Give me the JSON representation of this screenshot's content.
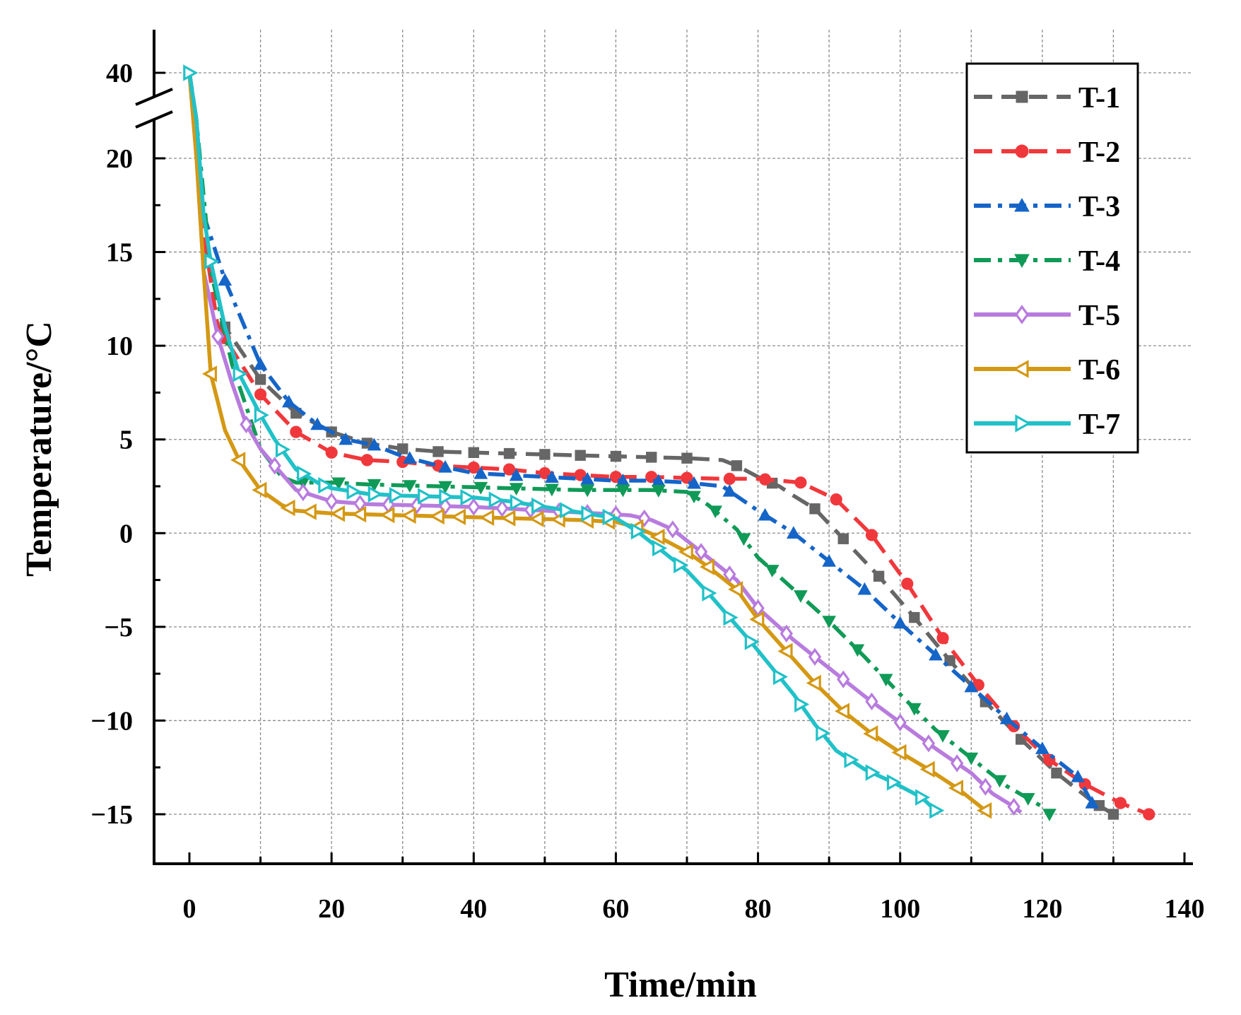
{
  "chart_data": {
    "type": "line",
    "title": "",
    "xlabel": "Time/min",
    "ylabel": "Temperature/°C",
    "xlim": [
      -5,
      140
    ],
    "ylim": [
      -18,
      42
    ],
    "axis_break": {
      "lower": 22,
      "upper": 38,
      "note": "y-axis broken between 22 and 38"
    },
    "x_ticks": [
      0,
      20,
      40,
      60,
      80,
      100,
      120,
      140
    ],
    "y_ticks": [
      -15,
      -10,
      -5,
      0,
      5,
      10,
      15,
      20,
      40
    ],
    "y_tick_labels": [
      "−15",
      "−10",
      "−5",
      "0",
      "5",
      "10",
      "15",
      "20",
      "40"
    ],
    "grid": true,
    "legend_position": "top-right",
    "series": [
      {
        "name": "T-1",
        "color": "#666666",
        "dash": "dash",
        "marker": "square",
        "marker_fill": true,
        "points": [
          [
            0,
            40
          ],
          [
            1,
            22
          ],
          [
            2,
            16
          ],
          [
            5,
            11
          ],
          [
            10,
            8.2
          ],
          [
            15,
            6.4
          ],
          [
            20,
            5.4
          ],
          [
            25,
            4.8
          ],
          [
            30,
            4.5
          ],
          [
            35,
            4.35
          ],
          [
            40,
            4.3
          ],
          [
            45,
            4.25
          ],
          [
            50,
            4.2
          ],
          [
            55,
            4.15
          ],
          [
            60,
            4.1
          ],
          [
            65,
            4.05
          ],
          [
            70,
            4
          ],
          [
            75,
            3.9
          ],
          [
            77,
            3.6
          ],
          [
            80,
            3
          ],
          [
            83,
            2.5
          ],
          [
            85,
            2
          ],
          [
            88,
            1.3
          ],
          [
            92,
            -0.3
          ],
          [
            97,
            -2.3
          ],
          [
            102,
            -4.5
          ],
          [
            107,
            -6.8
          ],
          [
            112,
            -9
          ],
          [
            117,
            -11
          ],
          [
            122,
            -12.8
          ],
          [
            127,
            -14.3
          ],
          [
            130,
            -15
          ]
        ],
        "marker_x": [
          5,
          10,
          15,
          20,
          25,
          30,
          35,
          40,
          45,
          50,
          55,
          60,
          65,
          70,
          77,
          82,
          88,
          92,
          97,
          102,
          107,
          112,
          117,
          122,
          128,
          130
        ]
      },
      {
        "name": "T-2",
        "color": "#f0383c",
        "dash": "dash",
        "marker": "circle",
        "marker_fill": true,
        "points": [
          [
            0,
            40
          ],
          [
            1,
            22
          ],
          [
            2,
            16
          ],
          [
            4,
            11
          ],
          [
            10,
            7.4
          ],
          [
            15,
            5.4
          ],
          [
            20,
            4.3
          ],
          [
            25,
            3.9
          ],
          [
            30,
            3.8
          ],
          [
            35,
            3.6
          ],
          [
            40,
            3.5
          ],
          [
            45,
            3.4
          ],
          [
            50,
            3.2
          ],
          [
            55,
            3.1
          ],
          [
            60,
            3
          ],
          [
            65,
            3
          ],
          [
            70,
            2.95
          ],
          [
            75,
            2.9
          ],
          [
            80,
            2.9
          ],
          [
            83,
            2.8
          ],
          [
            86,
            2.7
          ],
          [
            91,
            1.8
          ],
          [
            96,
            -0.1
          ],
          [
            101,
            -2.7
          ],
          [
            106,
            -5.6
          ],
          [
            111,
            -8.1
          ],
          [
            116,
            -10.3
          ],
          [
            121,
            -12.1
          ],
          [
            126,
            -13.4
          ],
          [
            131,
            -14.4
          ],
          [
            135,
            -15
          ]
        ],
        "marker_x": [
          5,
          10,
          15,
          20,
          25,
          30,
          35,
          40,
          45,
          50,
          55,
          60,
          65,
          70,
          76,
          81,
          86,
          91,
          96,
          101,
          106,
          111,
          116,
          121,
          126,
          131,
          135
        ]
      },
      {
        "name": "T-3",
        "color": "#1565c8",
        "dash": "dashdot",
        "marker": "triangle-up",
        "marker_fill": true,
        "points": [
          [
            0,
            40
          ],
          [
            1,
            22
          ],
          [
            2,
            17
          ],
          [
            5,
            13.5
          ],
          [
            10,
            9
          ],
          [
            14,
            7
          ],
          [
            18,
            5.8
          ],
          [
            22,
            5
          ],
          [
            26,
            4.7
          ],
          [
            30,
            4.1
          ],
          [
            35,
            3.6
          ],
          [
            40,
            3.2
          ],
          [
            45,
            3.1
          ],
          [
            50,
            3
          ],
          [
            55,
            2.9
          ],
          [
            60,
            2.8
          ],
          [
            65,
            2.8
          ],
          [
            70,
            2.7
          ],
          [
            75,
            2.5
          ],
          [
            80,
            1.2
          ],
          [
            85,
            0
          ],
          [
            90,
            -1.5
          ],
          [
            95,
            -3
          ],
          [
            100,
            -4.8
          ],
          [
            105,
            -6.5
          ],
          [
            110,
            -8.2
          ],
          [
            115,
            -9.9
          ],
          [
            120,
            -11.5
          ],
          [
            125,
            -13
          ],
          [
            127,
            -14.4
          ]
        ],
        "marker_x": [
          5,
          10,
          14,
          18,
          22,
          26,
          31,
          36,
          41,
          46,
          51,
          56,
          61,
          66,
          71,
          76,
          81,
          85,
          90,
          95,
          100,
          105,
          110,
          115,
          120,
          125,
          127
        ]
      },
      {
        "name": "T-4",
        "color": "#109a57",
        "dash": "dashdot",
        "marker": "triangle-down",
        "marker_fill": true,
        "points": [
          [
            0,
            40
          ],
          [
            1,
            22
          ],
          [
            3,
            14
          ],
          [
            6,
            9
          ],
          [
            10,
            4.5
          ],
          [
            13,
            3
          ],
          [
            15,
            2.7
          ],
          [
            20,
            2.7
          ],
          [
            25,
            2.6
          ],
          [
            30,
            2.55
          ],
          [
            35,
            2.5
          ],
          [
            40,
            2.45
          ],
          [
            45,
            2.4
          ],
          [
            50,
            2.35
          ],
          [
            55,
            2.3
          ],
          [
            60,
            2.3
          ],
          [
            65,
            2.3
          ],
          [
            70,
            2.2
          ],
          [
            73,
            1.5
          ],
          [
            77,
            0.2
          ],
          [
            80,
            -1.3
          ],
          [
            85,
            -3
          ],
          [
            90,
            -4.7
          ],
          [
            95,
            -6.6
          ],
          [
            100,
            -8.6
          ],
          [
            105,
            -10.5
          ],
          [
            110,
            -12
          ],
          [
            115,
            -13.5
          ],
          [
            120,
            -14.6
          ],
          [
            121,
            -15
          ]
        ],
        "marker_x": [
          16,
          21,
          26,
          31,
          36,
          41,
          46,
          51,
          56,
          61,
          66,
          71,
          74,
          78,
          82,
          86,
          90,
          94,
          98,
          102,
          106,
          110,
          114,
          118,
          121
        ]
      },
      {
        "name": "T-5",
        "color": "#b87bde",
        "dash": "solid",
        "marker": "diamond",
        "marker_fill": false,
        "points": [
          [
            0,
            40
          ],
          [
            1,
            20
          ],
          [
            2,
            14
          ],
          [
            4,
            10.5
          ],
          [
            6,
            8
          ],
          [
            8,
            5.8
          ],
          [
            10,
            4.5
          ],
          [
            12,
            3.6
          ],
          [
            15,
            2.3
          ],
          [
            20,
            1.7
          ],
          [
            25,
            1.55
          ],
          [
            30,
            1.5
          ],
          [
            35,
            1.45
          ],
          [
            40,
            1.4
          ],
          [
            45,
            1.3
          ],
          [
            50,
            1.2
          ],
          [
            55,
            1.1
          ],
          [
            60,
            1
          ],
          [
            62,
            0.95
          ],
          [
            65,
            0.7
          ],
          [
            68,
            0.2
          ],
          [
            72,
            -1
          ],
          [
            77,
            -2.5
          ],
          [
            80,
            -4
          ],
          [
            85,
            -5.7
          ],
          [
            90,
            -7.2
          ],
          [
            95,
            -8.7
          ],
          [
            100,
            -10.1
          ],
          [
            105,
            -11.5
          ],
          [
            110,
            -12.8
          ],
          [
            113,
            -13.9
          ],
          [
            116,
            -14.6
          ],
          [
            117,
            -14.9
          ]
        ],
        "marker_x": [
          4,
          8,
          12,
          16,
          20,
          24,
          28,
          32,
          36,
          40,
          44,
          48,
          52,
          56,
          60,
          64,
          68,
          72,
          76,
          80,
          84,
          88,
          92,
          96,
          100,
          104,
          108,
          112,
          116
        ]
      },
      {
        "name": "T-6",
        "color": "#d49813",
        "dash": "solid",
        "marker": "triangle-left",
        "marker_fill": false,
        "points": [
          [
            0,
            40
          ],
          [
            1,
            20
          ],
          [
            2,
            14
          ],
          [
            3,
            8.5
          ],
          [
            5,
            5.5
          ],
          [
            7,
            3.9
          ],
          [
            10,
            2.3
          ],
          [
            13,
            1.5
          ],
          [
            15,
            1.2
          ],
          [
            20,
            1.05
          ],
          [
            25,
            1
          ],
          [
            30,
            0.95
          ],
          [
            35,
            0.9
          ],
          [
            40,
            0.85
          ],
          [
            45,
            0.8
          ],
          [
            50,
            0.75
          ],
          [
            55,
            0.7
          ],
          [
            60,
            0.6
          ],
          [
            63,
            0.3
          ],
          [
            66,
            -0.2
          ],
          [
            70,
            -1
          ],
          [
            73,
            -1.8
          ],
          [
            77,
            -3
          ],
          [
            80,
            -4.6
          ],
          [
            84,
            -6.3
          ],
          [
            88,
            -8
          ],
          [
            92,
            -9.5
          ],
          [
            96,
            -10.7
          ],
          [
            100,
            -11.7
          ],
          [
            104,
            -12.6
          ],
          [
            108,
            -13.6
          ],
          [
            112,
            -14.8
          ]
        ],
        "marker_x": [
          3,
          7,
          10,
          14,
          17,
          21,
          24,
          28,
          31,
          35,
          38,
          42,
          45,
          49,
          52,
          56,
          59,
          63,
          66,
          70,
          73,
          77,
          80,
          84,
          88,
          92,
          96,
          100,
          104,
          108,
          112
        ]
      },
      {
        "name": "T-7",
        "color": "#21c1c8",
        "dash": "solid",
        "marker": "triangle-right",
        "marker_fill": false,
        "points": [
          [
            0,
            40
          ],
          [
            1,
            22
          ],
          [
            2,
            17
          ],
          [
            3,
            14.5
          ],
          [
            5,
            11
          ],
          [
            7,
            8.5
          ],
          [
            10,
            6.3
          ],
          [
            12,
            5
          ],
          [
            15,
            3.4
          ],
          [
            18,
            2.7
          ],
          [
            20,
            2.4
          ],
          [
            25,
            2.1
          ],
          [
            30,
            2
          ],
          [
            35,
            1.95
          ],
          [
            40,
            1.9
          ],
          [
            45,
            1.7
          ],
          [
            50,
            1.4
          ],
          [
            55,
            1.1
          ],
          [
            60,
            0.8
          ],
          [
            63,
            0.1
          ],
          [
            66,
            -0.8
          ],
          [
            70,
            -2
          ],
          [
            73,
            -3.2
          ],
          [
            76,
            -4.5
          ],
          [
            79,
            -5.8
          ],
          [
            82,
            -7.2
          ],
          [
            85,
            -8.6
          ],
          [
            88,
            -10.2
          ],
          [
            91,
            -11.6
          ],
          [
            95,
            -12.6
          ],
          [
            99,
            -13.3
          ],
          [
            103,
            -14.1
          ],
          [
            105,
            -14.8
          ]
        ],
        "marker_x": [
          0,
          3,
          7,
          10,
          13,
          16,
          19,
          23,
          26,
          29,
          33,
          36,
          39,
          43,
          46,
          49,
          53,
          56,
          59,
          63,
          66,
          69,
          73,
          76,
          79,
          83,
          86,
          89,
          93,
          96,
          99,
          103,
          105
        ]
      }
    ]
  }
}
